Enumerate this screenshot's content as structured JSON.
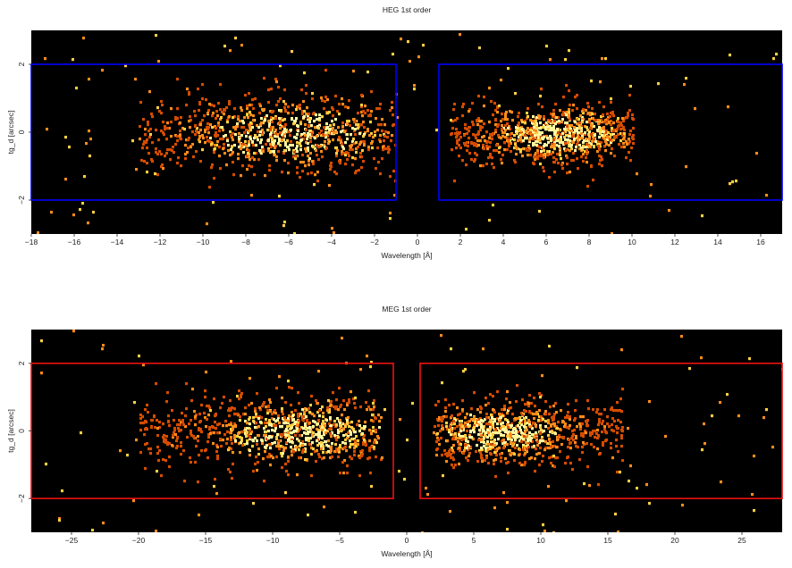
{
  "chart_data": [
    {
      "type": "heatmap",
      "title": "HEG 1st order",
      "xlabel": "Wavelength [Å]",
      "ylabel": "tg_d [arcsec]",
      "xlim": [
        -18,
        17
      ],
      "ylim": [
        -3,
        3
      ],
      "xticks": [
        -18,
        -16,
        -14,
        -12,
        -10,
        -8,
        -6,
        -4,
        -2,
        0,
        2,
        4,
        6,
        8,
        10,
        12,
        14,
        16
      ],
      "yticks": [
        -2,
        0,
        2
      ],
      "background": "#000000",
      "colormap": [
        "#6a1a00",
        "#d44c00",
        "#ff8c1a",
        "#ffd040",
        "#fff7a0"
      ],
      "regions": [
        {
          "x": [
            -18,
            -1
          ],
          "y": [
            -2,
            2
          ],
          "color": "#0000ff"
        },
        {
          "x": [
            1,
            17
          ],
          "y": [
            -2,
            2
          ],
          "color": "#0000ff"
        }
      ],
      "clusters": [
        {
          "x": [
            -13,
            -1
          ],
          "y_sigma": 0.55,
          "peak_x": -6,
          "density": 1.0
        },
        {
          "x": [
            1.5,
            10
          ],
          "y_sigma": 0.45,
          "peak_x": 6.5,
          "density": 1.0
        }
      ]
    },
    {
      "type": "heatmap",
      "title": "MEG 1st order",
      "xlabel": "Wavelength [Å]",
      "ylabel": "tg_d [arcsec]",
      "xlim": [
        -28,
        28
      ],
      "ylim": [
        -3,
        3
      ],
      "xticks": [
        -25,
        -20,
        -15,
        -10,
        -5,
        0,
        5,
        10,
        15,
        20,
        25
      ],
      "yticks": [
        -2,
        0,
        2
      ],
      "background": "#000000",
      "colormap": [
        "#6a1a00",
        "#d44c00",
        "#ff8c1a",
        "#ffd040",
        "#fff7a0"
      ],
      "regions": [
        {
          "x": [
            -28,
            -1
          ],
          "y": [
            -2,
            2
          ],
          "color": "#ee1111"
        },
        {
          "x": [
            1,
            28
          ],
          "y": [
            -2,
            2
          ],
          "color": "#ee1111"
        }
      ],
      "clusters": [
        {
          "x": [
            -20,
            -2
          ],
          "y_sigma": 0.5,
          "peak_x": -8,
          "density": 1.0
        },
        {
          "x": [
            2,
            16
          ],
          "y_sigma": 0.45,
          "peak_x": 7,
          "density": 1.0
        }
      ]
    }
  ]
}
